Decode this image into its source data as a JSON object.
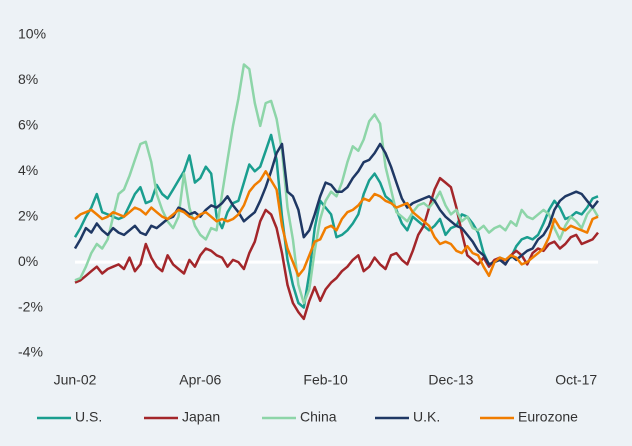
{
  "chart_data": {
    "type": "line",
    "categories": [
      "Jun-02",
      null,
      null,
      null,
      null,
      null,
      null,
      null,
      null,
      null,
      null,
      null,
      null,
      null,
      null,
      null,
      null,
      null,
      null,
      null,
      null,
      null,
      null,
      "Apr-06",
      null,
      null,
      null,
      null,
      null,
      null,
      null,
      null,
      null,
      null,
      null,
      null,
      null,
      null,
      null,
      null,
      null,
      null,
      null,
      null,
      null,
      null,
      "Feb-10",
      null,
      null,
      null,
      null,
      null,
      null,
      null,
      null,
      null,
      null,
      null,
      null,
      null,
      null,
      null,
      null,
      null,
      null,
      null,
      null,
      null,
      null,
      "Dec-13",
      null,
      null,
      null,
      null,
      null,
      null,
      null,
      null,
      null,
      null,
      null,
      null,
      null,
      null,
      null,
      null,
      null,
      null,
      null,
      null,
      null,
      null,
      "Oct-17",
      null,
      null,
      null,
      null
    ],
    "series": [
      {
        "name": "U.S.",
        "color": "#1a9e8f",
        "values": [
          1.1,
          1.5,
          2.0,
          2.4,
          3.0,
          2.2,
          2.1,
          2.0,
          1.9,
          2.0,
          2.5,
          3.0,
          3.3,
          2.6,
          2.7,
          3.4,
          3.0,
          2.8,
          3.2,
          3.6,
          4.0,
          4.7,
          3.5,
          3.7,
          4.2,
          3.9,
          2.0,
          1.5,
          2.2,
          2.6,
          2.7,
          3.5,
          4.3,
          4.0,
          4.2,
          4.9,
          5.6,
          4.5,
          2.0,
          0.1,
          -1.0,
          -1.8,
          -2.0,
          -0.5,
          1.5,
          2.7,
          2.4,
          2.1,
          1.1,
          1.2,
          1.4,
          1.7,
          2.1,
          3.0,
          3.6,
          3.9,
          3.5,
          2.9,
          2.7,
          2.3,
          1.7,
          1.4,
          2.0,
          1.8,
          1.6,
          1.4,
          1.6,
          1.9,
          1.2,
          1.5,
          1.6,
          2.1,
          2.0,
          1.7,
          1.3,
          0.4,
          -0.1,
          0,
          0.2,
          0.1,
          0.2,
          0.7,
          1.0,
          1.1,
          1.0,
          1.2,
          1.7,
          2.3,
          2.7,
          2.4,
          1.9,
          2.0,
          2.2,
          2.1,
          2.4,
          2.8,
          2.9
        ]
      },
      {
        "name": "Japan",
        "color": "#a3262a",
        "values": [
          -0.9,
          -0.8,
          -0.6,
          -0.4,
          -0.2,
          -0.5,
          -0.3,
          -0.2,
          -0.1,
          -0.3,
          0.2,
          -0.4,
          -0.1,
          0.8,
          0.2,
          -0.2,
          -0.4,
          0.3,
          -0.1,
          -0.3,
          -0.5,
          0.1,
          -0.2,
          0.3,
          0.6,
          0.5,
          0.3,
          0.2,
          -0.2,
          0.1,
          0,
          -0.3,
          0.4,
          0.9,
          1.8,
          2.3,
          2.1,
          1.5,
          0.4,
          -1.0,
          -1.8,
          -2.2,
          -2.5,
          -1.7,
          -1.1,
          -1.7,
          -1.2,
          -0.9,
          -0.7,
          -0.4,
          -0.2,
          0.1,
          0.3,
          -0.4,
          -0.2,
          0.2,
          -0.1,
          -0.3,
          0.3,
          0.4,
          0.1,
          -0.1,
          0.5,
          1.2,
          1.6,
          2.4,
          3.2,
          3.7,
          3.5,
          3.3,
          2.4,
          1.3,
          0.3,
          0.1,
          -0.1,
          0.2,
          -0.2,
          0.1,
          0.2,
          -0.1,
          0.3,
          0.5,
          0.3,
          -0.1,
          0.4,
          0.6,
          0.5,
          0.8,
          0.9,
          0.6,
          0.8,
          1.1,
          1.2,
          0.8,
          0.9,
          1.0,
          1.3
        ]
      },
      {
        "name": "China",
        "color": "#8dd5a8",
        "values": [
          -0.8,
          -0.7,
          -0.2,
          0.4,
          0.8,
          0.6,
          1.0,
          2.0,
          3.0,
          3.2,
          3.8,
          4.5,
          5.2,
          5.3,
          4.4,
          3.0,
          2.3,
          1.8,
          1.5,
          2.0,
          3.9,
          2.4,
          1.6,
          1.2,
          1.0,
          1.5,
          1.4,
          3.0,
          4.5,
          6.0,
          7.2,
          8.7,
          8.5,
          7.0,
          6.0,
          7.0,
          7.1,
          6.3,
          4.9,
          2.4,
          1.0,
          -1.0,
          -1.8,
          -1.2,
          0.5,
          1.9,
          2.7,
          3.1,
          2.9,
          3.5,
          4.4,
          5.1,
          4.9,
          5.4,
          6.2,
          6.5,
          6.1,
          4.2,
          3.2,
          2.2,
          2.0,
          1.8,
          2.2,
          2.5,
          2.6,
          2.4,
          2.7,
          3.1,
          2.5,
          2.1,
          2.3,
          1.8,
          2.0,
          1.5,
          1.4,
          1.6,
          1.3,
          1.5,
          1.6,
          1.4,
          1.8,
          1.6,
          2.3,
          2.0,
          1.9,
          2.1,
          2.3,
          2.1,
          1.5,
          1.0,
          1.6,
          2.0,
          1.8,
          1.5,
          2.1,
          2.4,
          2.0
        ]
      },
      {
        "name": "U.K.",
        "color": "#1f3864",
        "values": [
          0.6,
          1.0,
          1.5,
          1.3,
          1.7,
          1.4,
          1.2,
          1.5,
          1.3,
          1.2,
          1.4,
          1.6,
          1.3,
          1.2,
          1.6,
          1.5,
          1.7,
          1.9,
          2.0,
          2.4,
          2.3,
          2.1,
          2.2,
          2.0,
          2.3,
          2.5,
          2.4,
          2.6,
          2.9,
          2.5,
          2.2,
          1.8,
          2.0,
          2.2,
          2.7,
          3.3,
          4.0,
          4.8,
          5.2,
          3.1,
          2.9,
          2.3,
          1.1,
          1.4,
          2.1,
          2.9,
          3.5,
          3.4,
          3.1,
          3.1,
          3.3,
          3.7,
          4.0,
          4.4,
          4.5,
          4.8,
          5.2,
          4.8,
          4.2,
          3.5,
          2.8,
          2.4,
          2.6,
          2.7,
          2.8,
          2.9,
          2.7,
          2.3,
          2.0,
          1.8,
          1.6,
          1.5,
          1.2,
          0.9,
          0.5,
          0.3,
          -0.1,
          0,
          0.1,
          -0.1,
          0.3,
          0.1,
          0.3,
          0.5,
          0.6,
          1.0,
          1.2,
          1.6,
          2.3,
          2.7,
          2.9,
          3.0,
          3.1,
          3.0,
          2.7,
          2.4,
          2.7
        ]
      },
      {
        "name": "Eurozone",
        "color": "#f07d00",
        "values": [
          1.9,
          2.1,
          2.2,
          2.3,
          2.1,
          1.9,
          2.0,
          2.2,
          2.1,
          2.0,
          2.2,
          2.4,
          2.3,
          2.1,
          2.4,
          2.2,
          2.0,
          1.9,
          2.1,
          2.3,
          2.2,
          2.0,
          1.9,
          2.1,
          2.2,
          2.0,
          1.8,
          1.9,
          1.8,
          1.9,
          2.1,
          2.5,
          3.1,
          3.4,
          3.6,
          4.0,
          3.6,
          3.2,
          1.6,
          0.6,
          0.0,
          -0.6,
          -0.3,
          0.3,
          0.9,
          1.0,
          1.5,
          1.6,
          1.4,
          1.9,
          2.2,
          2.3,
          2.5,
          2.8,
          2.7,
          3.0,
          2.9,
          2.7,
          2.6,
          2.4,
          2.5,
          2.6,
          2.2,
          2.0,
          1.8,
          1.6,
          1.1,
          0.8,
          0.9,
          0.8,
          0.5,
          0.4,
          0.7,
          0.4,
          0.3,
          -0.2,
          -0.6,
          0,
          0.2,
          0.1,
          0.3,
          0.2,
          -0.1,
          0.0,
          0.2,
          0.4,
          0.6,
          1.1,
          1.9,
          1.5,
          1.4,
          1.6,
          1.5,
          1.4,
          1.3,
          1.9,
          2.0
        ]
      }
    ],
    "ylim": [
      -4,
      10
    ],
    "yticks": [
      {
        "value": -4,
        "label": "-4%"
      },
      {
        "value": -2,
        "label": "-2%"
      },
      {
        "value": 0,
        "label": "0%"
      },
      {
        "value": 2,
        "label": "2%"
      },
      {
        "value": 4,
        "label": "4%"
      },
      {
        "value": 6,
        "label": "6%"
      },
      {
        "value": 8,
        "label": "8%"
      },
      {
        "value": 10,
        "label": "10%"
      }
    ],
    "grid": false,
    "legend": "bottom"
  }
}
